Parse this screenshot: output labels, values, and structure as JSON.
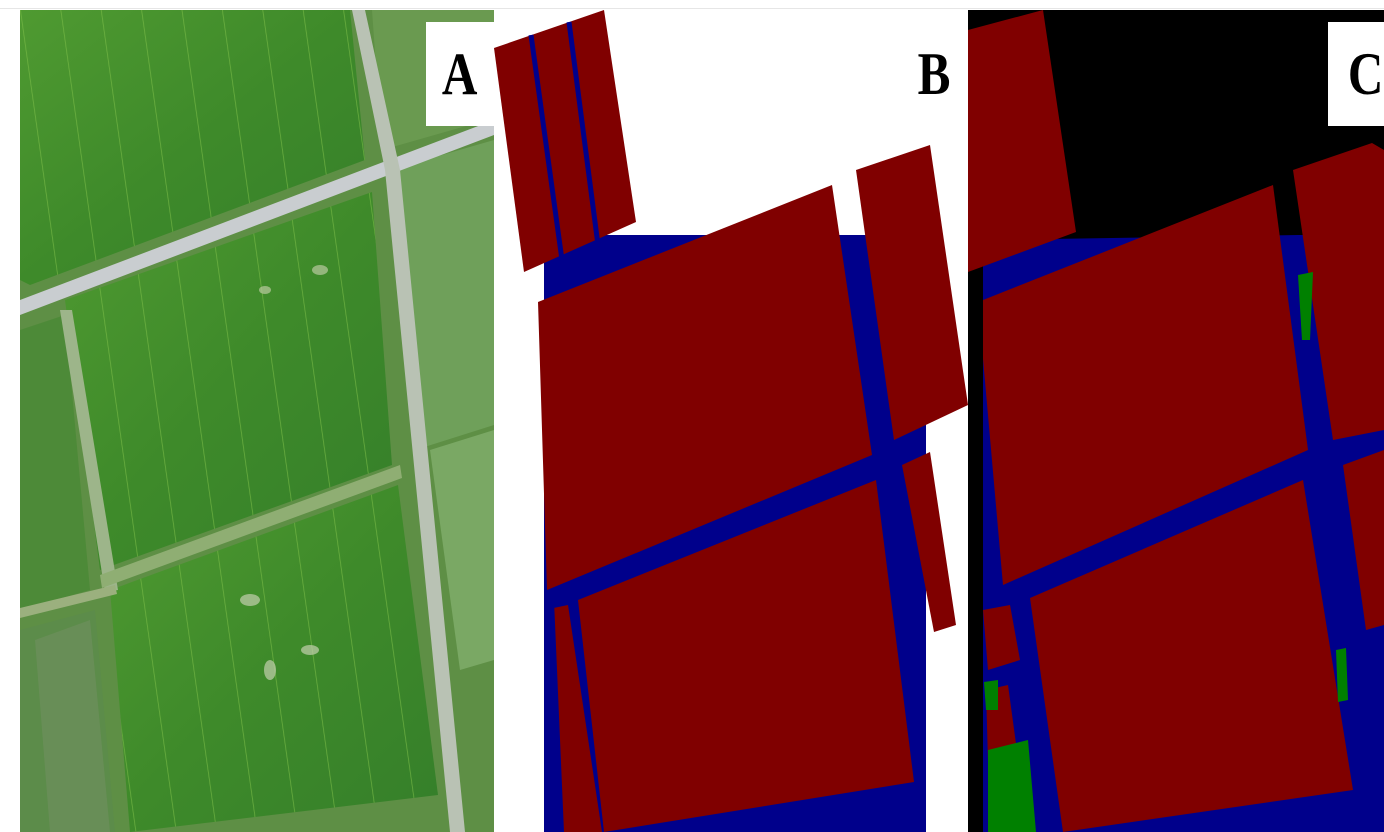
{
  "figure": {
    "panels": [
      {
        "id": "A",
        "label": "A",
        "kind": "aerial-photo"
      },
      {
        "id": "B",
        "label": "B",
        "kind": "ground-truth-segmentation"
      },
      {
        "id": "C",
        "label": "C",
        "kind": "predicted-segmentation"
      }
    ]
  },
  "colors": {
    "field_class": "#800000",
    "road_class": "#00008b",
    "vegetation_class": "#008000",
    "background_class": "#000000",
    "photo_green": "#3f8f2c",
    "photo_road": "#c9cdd0"
  }
}
